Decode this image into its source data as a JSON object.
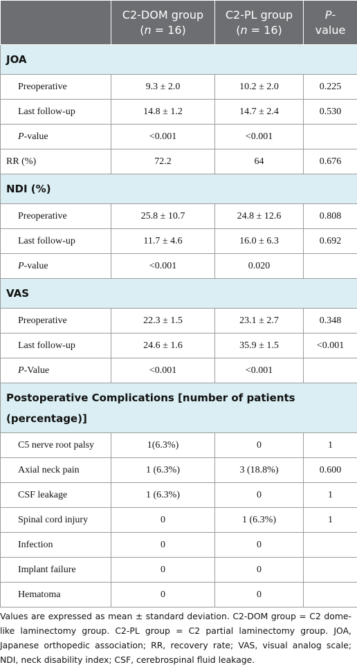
{
  "table": {
    "header": [
      [
        [
          "C2-DOM group"
        ],
        [
          "(",
          {
            "text": "n",
            "italic": true
          },
          " = 16)"
        ]
      ],
      [
        [
          "C2-PL group"
        ],
        [
          "(",
          {
            "text": "n",
            "italic": true
          },
          " = 16)"
        ]
      ],
      [
        [
          {
            "text": "P",
            "italic": true
          },
          "-"
        ],
        [
          "value"
        ]
      ]
    ],
    "sections": [
      {
        "title": "JOA",
        "rows": [
          [
            "Preoperative",
            "9.3 ± 2.0",
            "10.2 ± 2.0",
            "0.225"
          ],
          [
            "Last follow-up",
            "14.8 ± 1.2",
            "14.7 ± 2.4",
            "0.530"
          ],
          [
            [
              {
                "text": "P",
                "italic": true
              },
              "-value"
            ],
            "<0.001",
            "<0.001"
          ],
          [
            "RR (%)",
            "72.2",
            "64",
            "0.676"
          ]
        ]
      },
      {
        "title": "NDI (%)",
        "rows": [
          [
            "Preoperative",
            "25.8 ± 10.7",
            "24.8 ± 12.6",
            "0.808"
          ],
          [
            "Last follow-up",
            "11.7 ± 4.6",
            "16.0 ± 6.3",
            "0.692"
          ],
          [
            [
              {
                "text": "P",
                "italic": true
              },
              "-value"
            ],
            "<0.001",
            "0.020"
          ]
        ]
      },
      {
        "title": "VAS",
        "rows": [
          [
            "Preoperative",
            "22.3 ± 1.5",
            "23.1 ± 2.7",
            "0.348"
          ],
          [
            "Last follow-up",
            "24.6 ± 1.6",
            "35.9 ± 1.5",
            "<0.001"
          ],
          [
            [
              {
                "text": "P",
                "italic": true
              },
              "-Value"
            ],
            "<0.001",
            "<0.001"
          ]
        ]
      },
      {
        "title": "Postoperative Complications [number of patients (percentage)]",
        "rows": [
          [
            "C5 nerve root palsy",
            "1(6.3%)",
            "0",
            "1"
          ],
          [
            "Axial neck pain",
            "1 (6.3%)",
            "3 (18.8%)",
            "0.600"
          ],
          [
            "CSF leakage",
            "1 (6.3%)",
            "0",
            "1"
          ],
          [
            "Spinal cord injury",
            "0",
            "1 (6.3%)",
            "1"
          ],
          [
            "Infection",
            "0",
            "0"
          ],
          [
            "Implant failure",
            "0",
            "0"
          ],
          [
            "Hematoma",
            "0",
            "0"
          ]
        ]
      }
    ]
  },
  "footnote": "Values are expressed as mean ± standard deviation. C2-DOM group = C2 dome-like laminectomy group. C2-PL group = C2 partial laminectomy group. JOA, Japanese orthopedic association; RR, recovery rate; VAS, visual analog scale; NDI, neck disability index; CSF, cerebrospinal fluid leakage."
}
